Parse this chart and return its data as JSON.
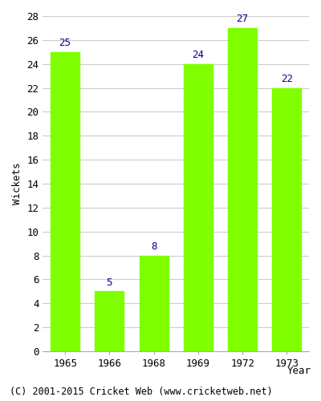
{
  "years": [
    "1965",
    "1966",
    "1968",
    "1969",
    "1972",
    "1973"
  ],
  "values": [
    25,
    5,
    8,
    24,
    27,
    22
  ],
  "bar_color": "#7FFF00",
  "bar_edge_color": "#7FFF00",
  "label_color": "#00008B",
  "xlabel": "Year",
  "ylabel": "Wickets",
  "ylim": [
    0,
    28
  ],
  "yticks": [
    0,
    2,
    4,
    6,
    8,
    10,
    12,
    14,
    16,
    18,
    20,
    22,
    24,
    26,
    28
  ],
  "background_color": "#ffffff",
  "grid_color": "#cccccc",
  "footer": "(C) 2001-2015 Cricket Web (www.cricketweb.net)",
  "label_fontsize": 9,
  "axis_label_fontsize": 9,
  "tick_fontsize": 9,
  "footer_fontsize": 8.5
}
